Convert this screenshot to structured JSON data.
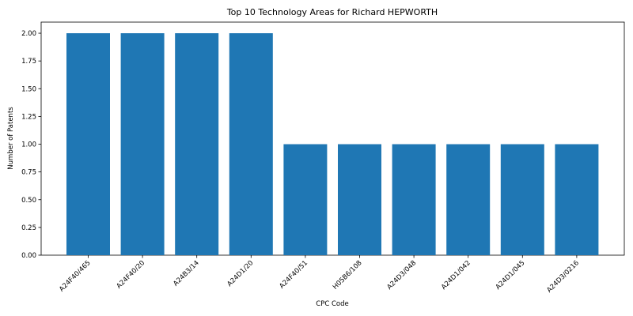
{
  "chart_data": {
    "type": "bar",
    "title": "Top 10 Technology Areas for Richard HEPWORTH",
    "xlabel": "CPC Code",
    "ylabel": "Number of Patents",
    "categories": [
      "A24F40/465",
      "A24F40/20",
      "A24B3/14",
      "A24D1/20",
      "A24F40/51",
      "H05B6/108",
      "A24D3/048",
      "A24D1/042",
      "A24D1/045",
      "A24D3/0216"
    ],
    "values": [
      2,
      2,
      2,
      2,
      1,
      1,
      1,
      1,
      1,
      1
    ],
    "ylim": [
      0,
      2.1
    ],
    "yticks": [
      "0.00",
      "0.25",
      "0.50",
      "0.75",
      "1.00",
      "1.25",
      "1.50",
      "1.75",
      "2.00"
    ],
    "grid": false,
    "bar_color": "#1f77b4"
  }
}
